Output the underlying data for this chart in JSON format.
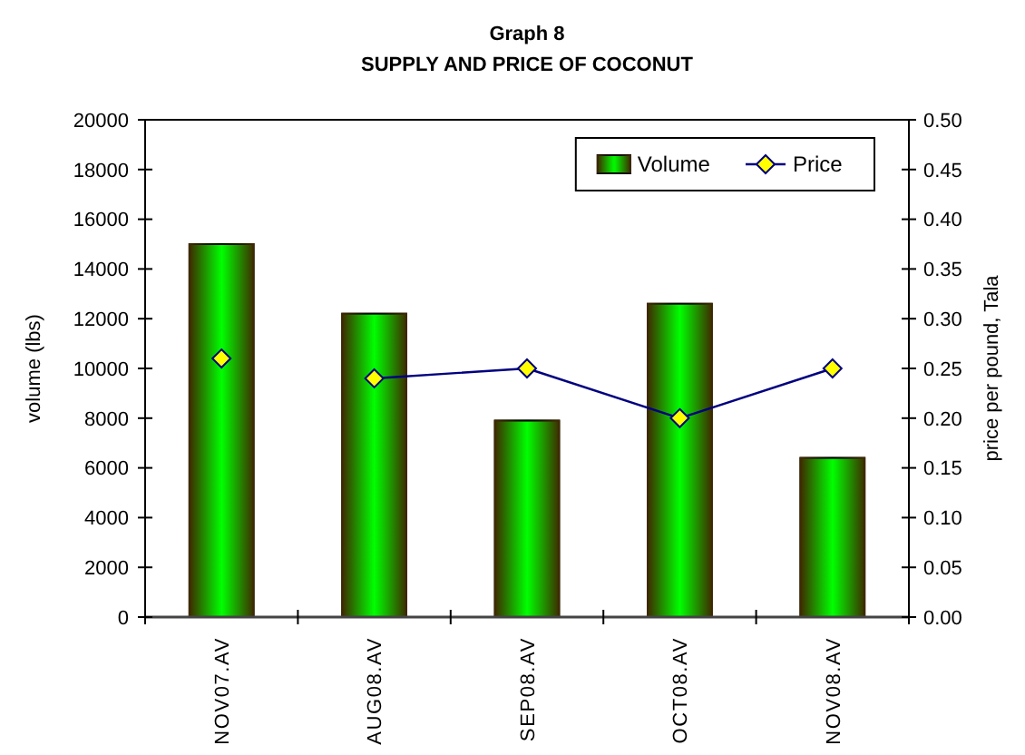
{
  "chart_data": {
    "type": "bar",
    "title": "Graph 8",
    "subtitle": "SUPPLY AND PRICE OF COCONUT",
    "ylabel": "volume (lbs)",
    "y2label": "price per pound, Tala",
    "categories": [
      "NOV07.AV",
      "AUG08.AV",
      "SEP08.AV",
      "OCT08.AV",
      "NOV08.AV"
    ],
    "series": [
      {
        "name": "Volume",
        "color": "#00ff00",
        "values": [
          15000,
          12200,
          7900,
          12600,
          6400
        ]
      },
      {
        "name": "Price",
        "type": "line",
        "axis": "y2",
        "color": "#000080",
        "values": [
          null,
          0.24,
          0.25,
          0.2,
          0.25
        ]
      },
      {
        "type": "scatter",
        "axis": "y2",
        "color": "#000080",
        "values": [
          0.26,
          null,
          null,
          null,
          null
        ]
      }
    ],
    "ylim": [
      0,
      20000
    ],
    "yticks": [
      0,
      2000,
      4000,
      6000,
      8000,
      10000,
      12000,
      14000,
      16000,
      18000,
      20000
    ],
    "y2lim": [
      0,
      0.5
    ],
    "y2ticks": [
      {
        "value": 0,
        "label": "0.00"
      },
      {
        "value": 0.05,
        "label": "0.05"
      },
      {
        "value": 0.1,
        "label": "0.10"
      },
      {
        "value": 0.15,
        "label": "0.15"
      },
      {
        "value": 0.2,
        "label": "0.20"
      },
      {
        "value": 0.25,
        "label": "0.25"
      },
      {
        "value": 0.3,
        "label": "0.30"
      },
      {
        "value": 0.35,
        "label": "0.35"
      },
      {
        "value": 0.4,
        "label": "0.40"
      },
      {
        "value": 0.45,
        "label": "0.45"
      },
      {
        "value": 0.5,
        "label": "0.50"
      }
    ],
    "legend": "top right",
    "marker": "diamond"
  }
}
